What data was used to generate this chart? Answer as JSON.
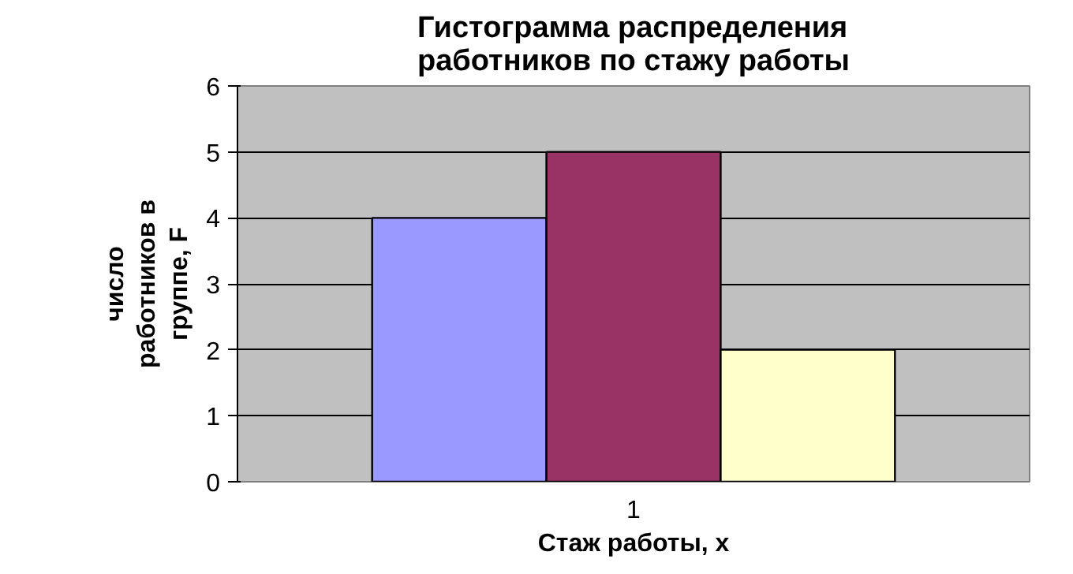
{
  "chart_data": {
    "type": "bar",
    "title": "Гистограмма распределения работников по стажу работы",
    "xlabel": "Стаж работы, x",
    "ylabel": "число работников в группе, F",
    "categories": [
      "1"
    ],
    "series": [
      {
        "color": "#9999ff",
        "values": [
          4
        ]
      },
      {
        "color": "#993366",
        "values": [
          5
        ]
      },
      {
        "color": "#ffffcc",
        "values": [
          2
        ]
      }
    ],
    "ylim": [
      0,
      6
    ],
    "yticks": [
      0,
      1,
      2,
      3,
      4,
      5,
      6
    ],
    "grid": "y"
  }
}
